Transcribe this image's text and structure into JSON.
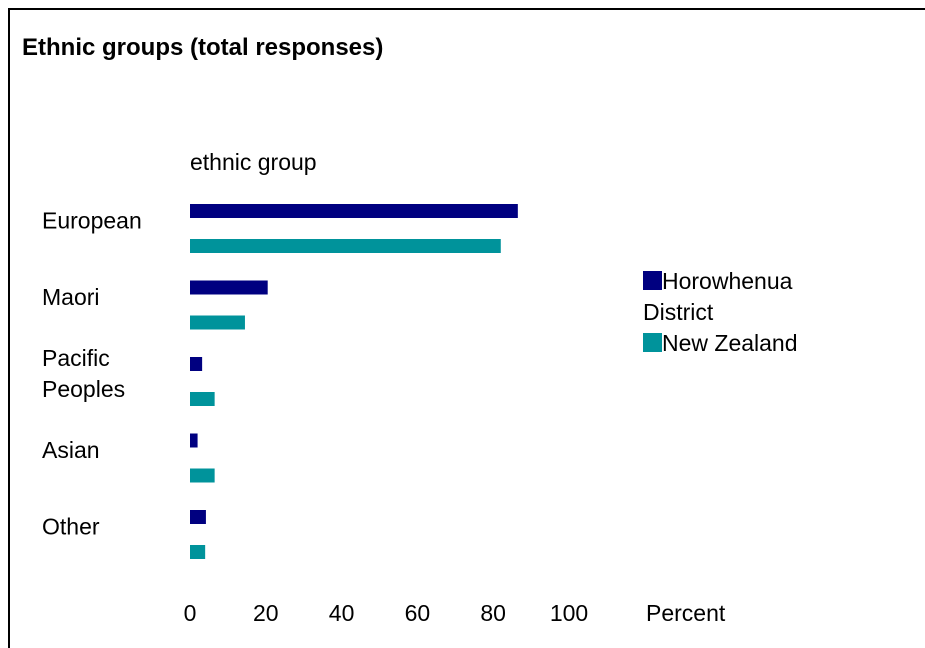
{
  "chart_data": {
    "type": "bar",
    "orientation": "horizontal",
    "title": "Ethnic groups (total responses)",
    "ylabel": "ethnic group",
    "xlabel": "Percent",
    "categories": [
      "European",
      "Maori",
      "Pacific\nPeoples",
      "Asian",
      "Other"
    ],
    "series": [
      {
        "name": "Horowhenua District",
        "color": "#000080",
        "values": [
          86.5,
          20.5,
          3.2,
          2.0,
          4.2
        ]
      },
      {
        "name": "New Zealand",
        "color": "#00939B",
        "values": [
          82.0,
          14.5,
          6.5,
          6.5,
          4.0
        ]
      }
    ],
    "xlim": [
      0,
      100
    ],
    "xticks": [
      0,
      20,
      40,
      60,
      80,
      100
    ],
    "grid": false,
    "legend_position": "right"
  }
}
